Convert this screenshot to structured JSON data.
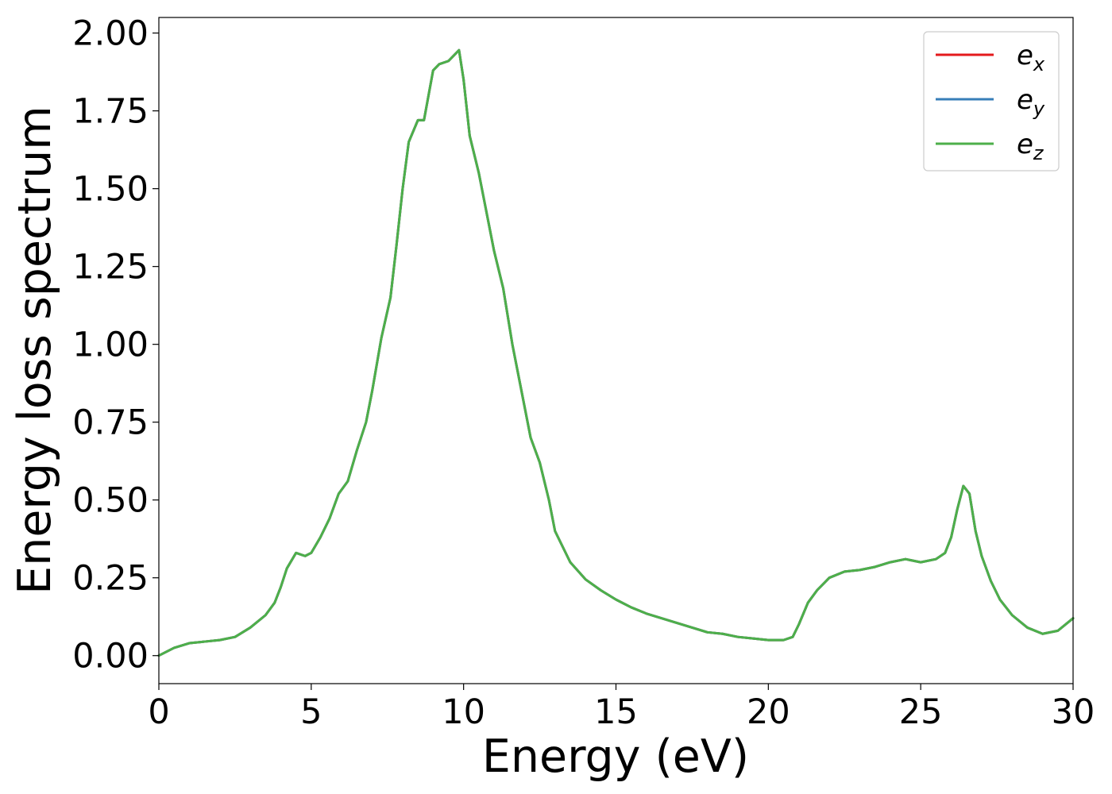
{
  "chart_data": {
    "type": "line",
    "title": "",
    "xlabel": "Energy (eV)",
    "ylabel": "Energy loss spectrum",
    "xlim": [
      0,
      30
    ],
    "ylim": [
      -0.09,
      2.05
    ],
    "xticks": [
      0,
      5,
      10,
      15,
      20,
      25,
      30
    ],
    "xtick_labels": [
      "0",
      "5",
      "10",
      "15",
      "20",
      "25",
      "30"
    ],
    "yticks": [
      0,
      0.25,
      0.5,
      0.75,
      1.0,
      1.25,
      1.5,
      1.75,
      2.0
    ],
    "ytick_labels": [
      "0.00",
      "0.25",
      "0.50",
      "0.75",
      "1.00",
      "1.25",
      "1.50",
      "1.75",
      "2.00"
    ],
    "grid": false,
    "legend_position": "top-right",
    "series": [
      {
        "name": "e_x",
        "label_base": "e",
        "label_sub": "x",
        "color": "#e41a1c",
        "x": [
          0,
          0.5,
          1,
          1.5,
          2,
          2.5,
          3,
          3.5,
          3.8,
          4,
          4.2,
          4.5,
          4.8,
          5,
          5.3,
          5.6,
          5.9,
          6.2,
          6.5,
          6.8,
          7,
          7.3,
          7.6,
          7.8,
          8,
          8.2,
          8.5,
          8.7,
          9,
          9.2,
          9.5,
          9.7,
          9.85,
          10,
          10.2,
          10.5,
          10.8,
          11,
          11.3,
          11.6,
          11.9,
          12.2,
          12.5,
          12.8,
          13,
          13.5,
          14,
          14.5,
          15,
          15.5,
          16,
          16.5,
          17,
          17.5,
          18,
          18.5,
          19,
          19.5,
          20,
          20.5,
          20.8,
          21,
          21.3,
          21.6,
          22,
          22.5,
          23,
          23.5,
          24,
          24.5,
          25,
          25.5,
          25.8,
          26,
          26.2,
          26.4,
          26.6,
          26.8,
          27,
          27.3,
          27.6,
          28,
          28.5,
          29,
          29.5,
          30
        ],
        "y": [
          0,
          0.025,
          0.04,
          0.045,
          0.05,
          0.06,
          0.09,
          0.13,
          0.17,
          0.22,
          0.28,
          0.33,
          0.32,
          0.33,
          0.38,
          0.44,
          0.52,
          0.56,
          0.66,
          0.75,
          0.85,
          1.02,
          1.15,
          1.32,
          1.5,
          1.65,
          1.72,
          1.72,
          1.88,
          1.9,
          1.91,
          1.93,
          1.945,
          1.85,
          1.67,
          1.55,
          1.4,
          1.3,
          1.18,
          1.0,
          0.85,
          0.7,
          0.62,
          0.5,
          0.4,
          0.3,
          0.245,
          0.21,
          0.18,
          0.155,
          0.135,
          0.12,
          0.105,
          0.09,
          0.075,
          0.07,
          0.06,
          0.055,
          0.05,
          0.05,
          0.06,
          0.1,
          0.17,
          0.21,
          0.25,
          0.27,
          0.275,
          0.285,
          0.3,
          0.31,
          0.3,
          0.31,
          0.33,
          0.38,
          0.47,
          0.545,
          0.52,
          0.4,
          0.32,
          0.24,
          0.18,
          0.13,
          0.09,
          0.07,
          0.08,
          0.12
        ]
      },
      {
        "name": "e_y",
        "label_base": "e",
        "label_sub": "y",
        "color": "#377eb8",
        "x": [
          0,
          0.5,
          1,
          1.5,
          2,
          2.5,
          3,
          3.5,
          3.8,
          4,
          4.2,
          4.5,
          4.8,
          5,
          5.3,
          5.6,
          5.9,
          6.2,
          6.5,
          6.8,
          7,
          7.3,
          7.6,
          7.8,
          8,
          8.2,
          8.5,
          8.7,
          9,
          9.2,
          9.5,
          9.7,
          9.85,
          10,
          10.2,
          10.5,
          10.8,
          11,
          11.3,
          11.6,
          11.9,
          12.2,
          12.5,
          12.8,
          13,
          13.5,
          14,
          14.5,
          15,
          15.5,
          16,
          16.5,
          17,
          17.5,
          18,
          18.5,
          19,
          19.5,
          20,
          20.5,
          20.8,
          21,
          21.3,
          21.6,
          22,
          22.5,
          23,
          23.5,
          24,
          24.5,
          25,
          25.5,
          25.8,
          26,
          26.2,
          26.4,
          26.6,
          26.8,
          27,
          27.3,
          27.6,
          28,
          28.5,
          29,
          29.5,
          30
        ],
        "y": [
          0,
          0.025,
          0.04,
          0.045,
          0.05,
          0.06,
          0.09,
          0.13,
          0.17,
          0.22,
          0.28,
          0.33,
          0.32,
          0.33,
          0.38,
          0.44,
          0.52,
          0.56,
          0.66,
          0.75,
          0.85,
          1.02,
          1.15,
          1.32,
          1.5,
          1.65,
          1.72,
          1.72,
          1.88,
          1.9,
          1.91,
          1.93,
          1.945,
          1.85,
          1.67,
          1.55,
          1.4,
          1.3,
          1.18,
          1.0,
          0.85,
          0.7,
          0.62,
          0.5,
          0.4,
          0.3,
          0.245,
          0.21,
          0.18,
          0.155,
          0.135,
          0.12,
          0.105,
          0.09,
          0.075,
          0.07,
          0.06,
          0.055,
          0.05,
          0.05,
          0.06,
          0.1,
          0.17,
          0.21,
          0.25,
          0.27,
          0.275,
          0.285,
          0.3,
          0.31,
          0.3,
          0.31,
          0.33,
          0.38,
          0.47,
          0.545,
          0.52,
          0.4,
          0.32,
          0.24,
          0.18,
          0.13,
          0.09,
          0.07,
          0.08,
          0.12
        ]
      },
      {
        "name": "e_z",
        "label_base": "e",
        "label_sub": "z",
        "color": "#4daf4a",
        "x": [
          0,
          0.5,
          1,
          1.5,
          2,
          2.5,
          3,
          3.5,
          3.8,
          4,
          4.2,
          4.5,
          4.8,
          5,
          5.3,
          5.6,
          5.9,
          6.2,
          6.5,
          6.8,
          7,
          7.3,
          7.6,
          7.8,
          8,
          8.2,
          8.5,
          8.7,
          9,
          9.2,
          9.5,
          9.7,
          9.85,
          10,
          10.2,
          10.5,
          10.8,
          11,
          11.3,
          11.6,
          11.9,
          12.2,
          12.5,
          12.8,
          13,
          13.5,
          14,
          14.5,
          15,
          15.5,
          16,
          16.5,
          17,
          17.5,
          18,
          18.5,
          19,
          19.5,
          20,
          20.5,
          20.8,
          21,
          21.3,
          21.6,
          22,
          22.5,
          23,
          23.5,
          24,
          24.5,
          25,
          25.5,
          25.8,
          26,
          26.2,
          26.4,
          26.6,
          26.8,
          27,
          27.3,
          27.6,
          28,
          28.5,
          29,
          29.5,
          30
        ],
        "y": [
          0,
          0.025,
          0.04,
          0.045,
          0.05,
          0.06,
          0.09,
          0.13,
          0.17,
          0.22,
          0.28,
          0.33,
          0.32,
          0.33,
          0.38,
          0.44,
          0.52,
          0.56,
          0.66,
          0.75,
          0.85,
          1.02,
          1.15,
          1.32,
          1.5,
          1.65,
          1.72,
          1.72,
          1.88,
          1.9,
          1.91,
          1.93,
          1.945,
          1.85,
          1.67,
          1.55,
          1.4,
          1.3,
          1.18,
          1.0,
          0.85,
          0.7,
          0.62,
          0.5,
          0.4,
          0.3,
          0.245,
          0.21,
          0.18,
          0.155,
          0.135,
          0.12,
          0.105,
          0.09,
          0.075,
          0.07,
          0.06,
          0.055,
          0.05,
          0.05,
          0.06,
          0.1,
          0.17,
          0.21,
          0.25,
          0.27,
          0.275,
          0.285,
          0.3,
          0.31,
          0.3,
          0.31,
          0.33,
          0.38,
          0.47,
          0.545,
          0.52,
          0.4,
          0.32,
          0.24,
          0.18,
          0.13,
          0.09,
          0.07,
          0.08,
          0.12
        ]
      }
    ]
  }
}
